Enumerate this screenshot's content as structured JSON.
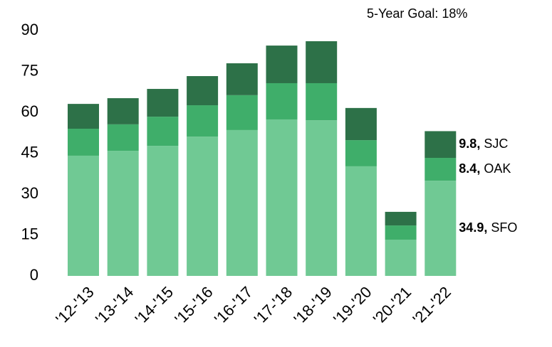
{
  "chart_data": {
    "type": "bar",
    "stacked": true,
    "annotation": "5-Year Goal: 18%",
    "categories": [
      "'12-'13",
      "'13-'14",
      "'14-'15",
      "'15-'16",
      "'16-'17",
      "'17-'18",
      "'18-'19",
      "'19-'20",
      "'20-'21",
      "'21-'22"
    ],
    "series": [
      {
        "name": "SFO",
        "color": "#70c994",
        "values": [
          44.1,
          45.9,
          47.7,
          51.1,
          53.5,
          57.4,
          57.1,
          40.2,
          13.3,
          34.9
        ],
        "value_labels": [
          null,
          null,
          null,
          null,
          null,
          null,
          null,
          null,
          null,
          "34.9,"
        ]
      },
      {
        "name": "OAK",
        "color": "#3fae6a",
        "values": [
          9.9,
          9.7,
          10.7,
          11.5,
          12.8,
          13.3,
          13.6,
          9.6,
          5.2,
          8.4
        ],
        "value_labels": [
          null,
          null,
          null,
          null,
          null,
          null,
          null,
          null,
          null,
          "8.4,"
        ]
      },
      {
        "name": "SJC",
        "color": "#2d7148",
        "values": [
          9.1,
          9.6,
          10.2,
          10.7,
          11.7,
          13.8,
          15.4,
          11.8,
          5.0,
          9.8
        ],
        "value_labels": [
          null,
          null,
          null,
          null,
          null,
          null,
          null,
          null,
          null,
          "9.8,"
        ]
      }
    ],
    "ylim": [
      0,
      90
    ],
    "yticks": [
      0,
      15,
      30,
      45,
      60,
      75,
      90
    ],
    "grid": false
  }
}
